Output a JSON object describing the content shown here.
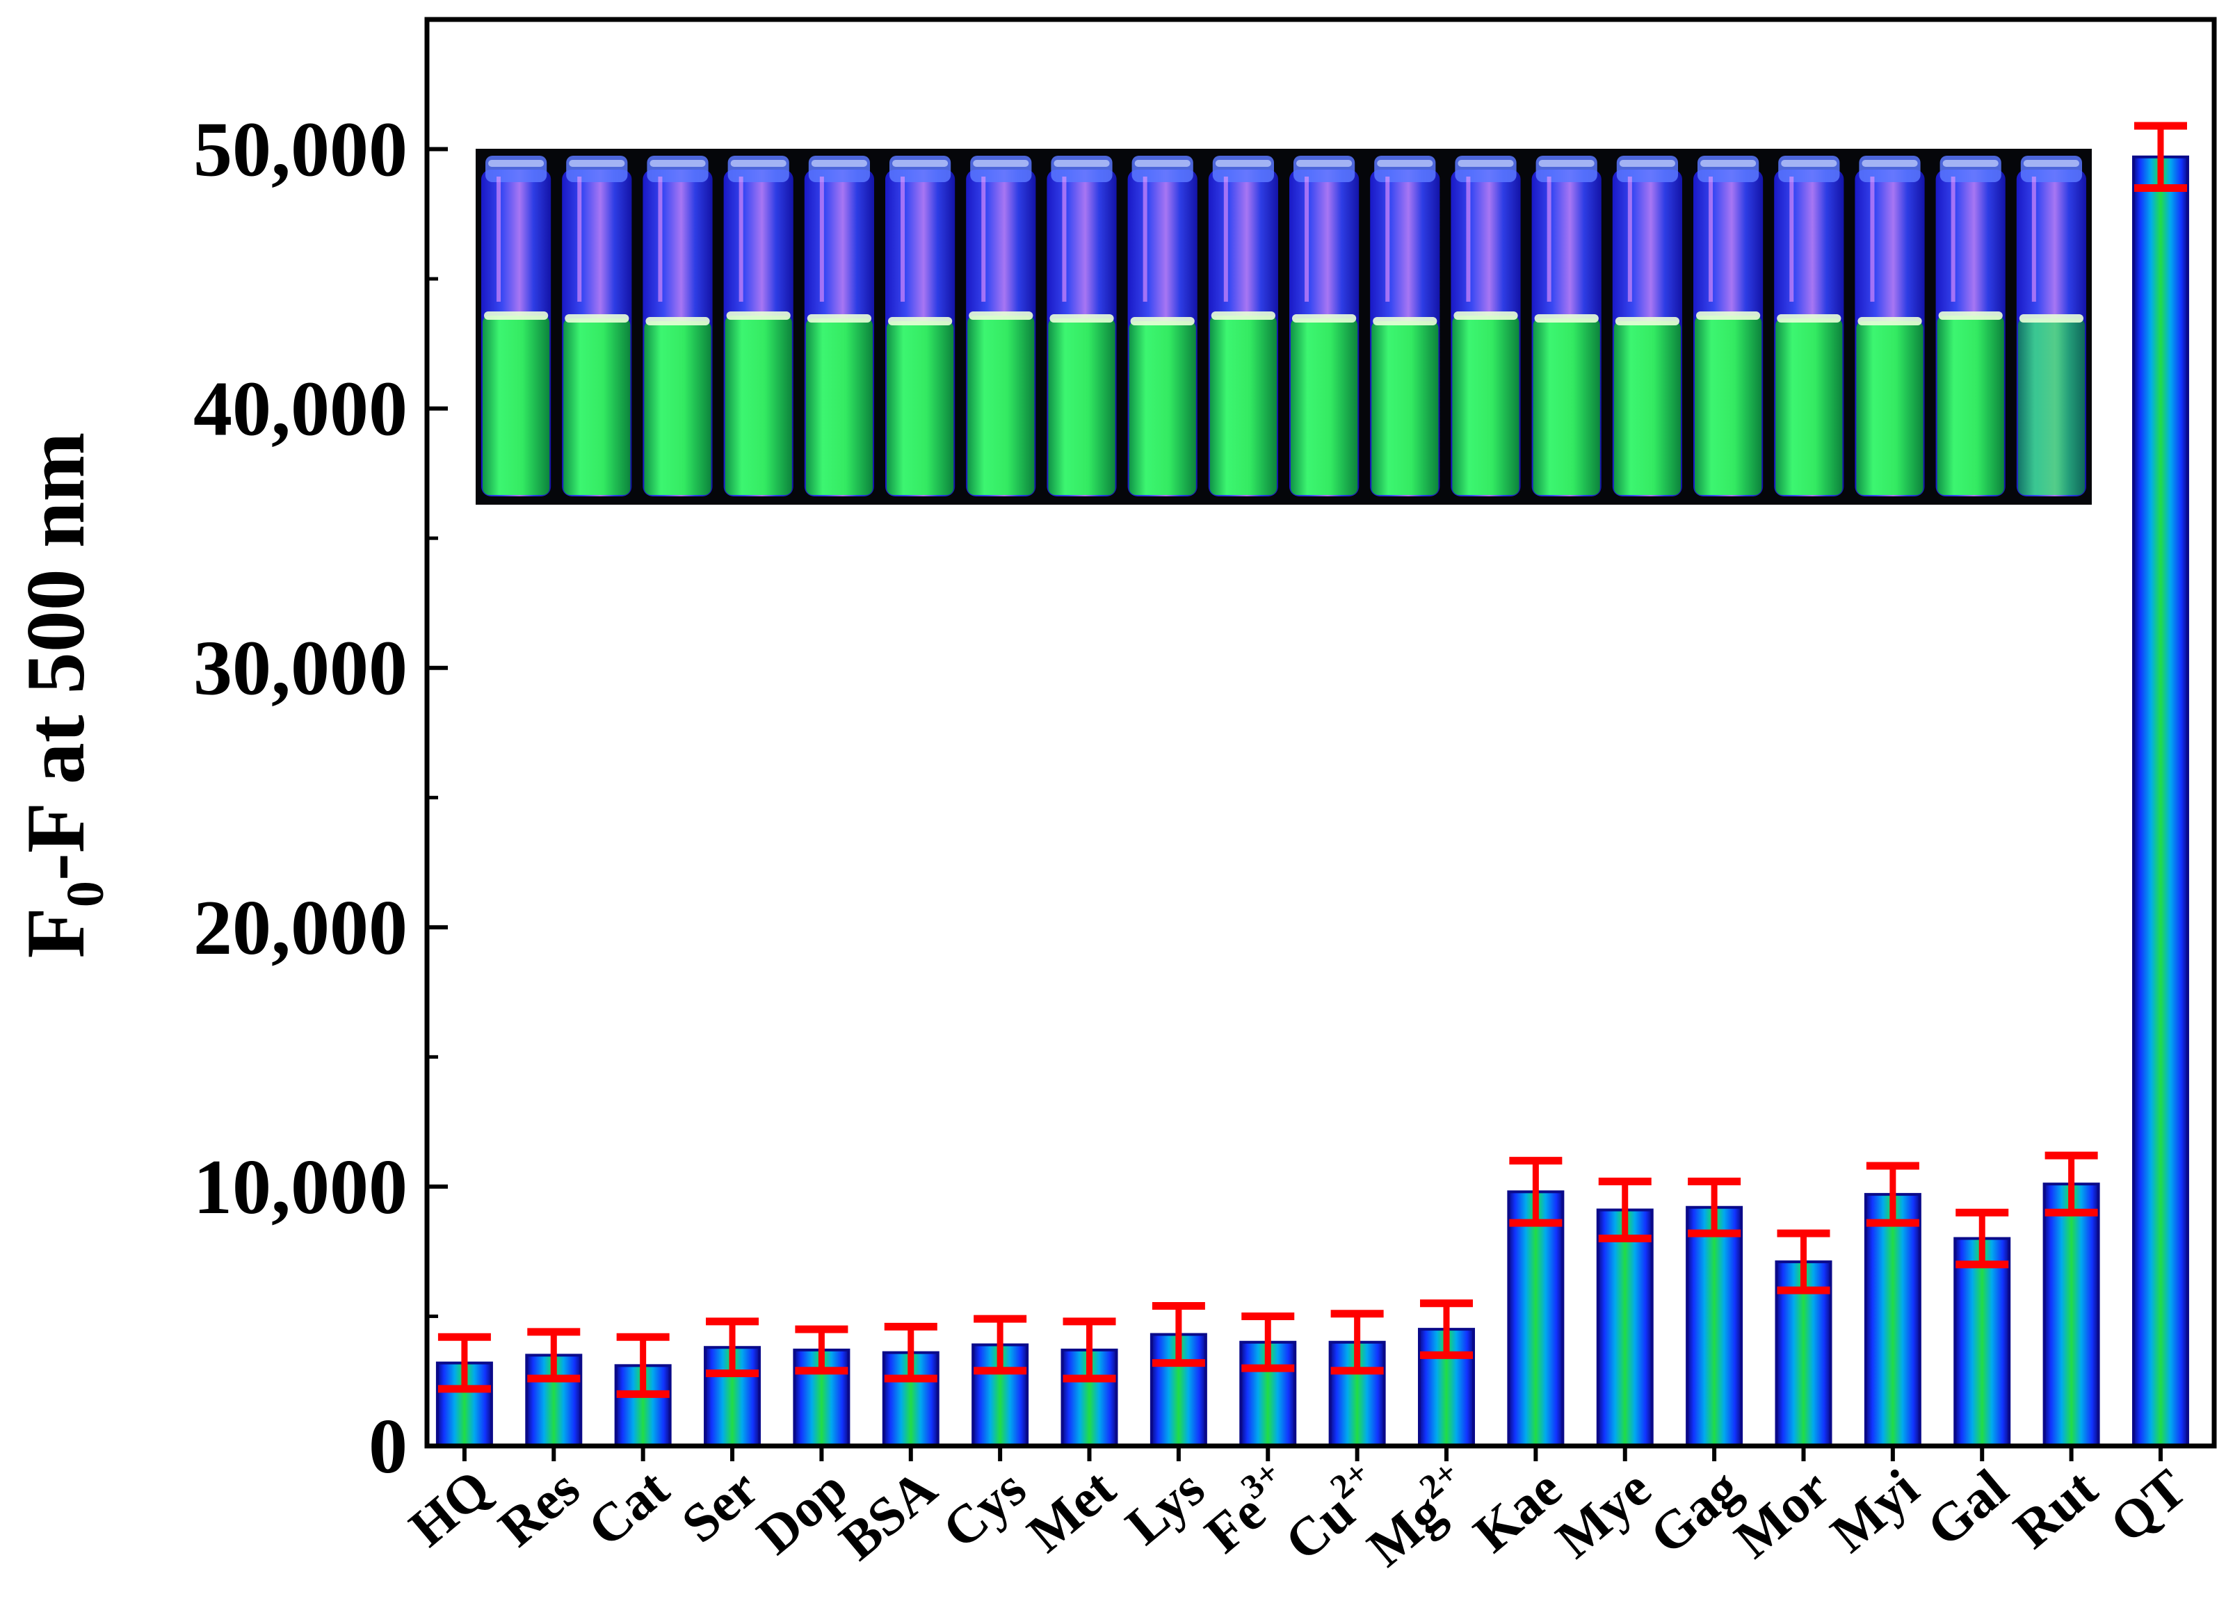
{
  "chart_data": {
    "type": "bar",
    "title": "",
    "xlabel": "",
    "ylabel": {
      "main": "F",
      "subscript": "0",
      "rest": "-F at 500 nm"
    },
    "ylim": [
      0,
      55000
    ],
    "yticks": [
      "0",
      "10,000",
      "20,000",
      "30,000",
      "40,000",
      "50,000"
    ],
    "ytick_values": [
      0,
      10000,
      20000,
      30000,
      40000,
      50000
    ],
    "categories": [
      {
        "base": "HQ",
        "sup": ""
      },
      {
        "base": "Res",
        "sup": ""
      },
      {
        "base": "Cat",
        "sup": ""
      },
      {
        "base": "Ser",
        "sup": ""
      },
      {
        "base": "Dop",
        "sup": ""
      },
      {
        "base": "BSA",
        "sup": ""
      },
      {
        "base": "Cys",
        "sup": ""
      },
      {
        "base": "Met",
        "sup": ""
      },
      {
        "base": "Lys",
        "sup": ""
      },
      {
        "base": "Fe",
        "sup": "3+"
      },
      {
        "base": "Cu",
        "sup": "2+"
      },
      {
        "base": "Mg",
        "sup": "2+"
      },
      {
        "base": "Kae",
        "sup": ""
      },
      {
        "base": "Mye",
        "sup": ""
      },
      {
        "base": "Gag",
        "sup": ""
      },
      {
        "base": "Mor",
        "sup": ""
      },
      {
        "base": "Myi",
        "sup": ""
      },
      {
        "base": "Gal",
        "sup": ""
      },
      {
        "base": "Rut",
        "sup": ""
      },
      {
        "base": "QT",
        "sup": ""
      }
    ],
    "values": [
      3200,
      3500,
      3100,
      3800,
      3700,
      3600,
      3900,
      3700,
      4300,
      4000,
      4000,
      4500,
      9800,
      9100,
      9200,
      7100,
      9700,
      8000,
      10100,
      49700
    ],
    "errors": [
      1000,
      900,
      1100,
      1000,
      800,
      1000,
      1000,
      1100,
      1100,
      1000,
      1100,
      1000,
      1200,
      1100,
      1000,
      1100,
      1100,
      1000,
      1100,
      1200
    ],
    "grid": false,
    "legend": "none",
    "colors": {
      "bar_edge": "#0a0a8a",
      "bar_center": "#22dd44",
      "bar_mid": "#00aaee",
      "bar_outer": "#1133ff",
      "error": "#ff0000"
    },
    "inset": {
      "vials": 20,
      "background": "#05060a"
    }
  }
}
